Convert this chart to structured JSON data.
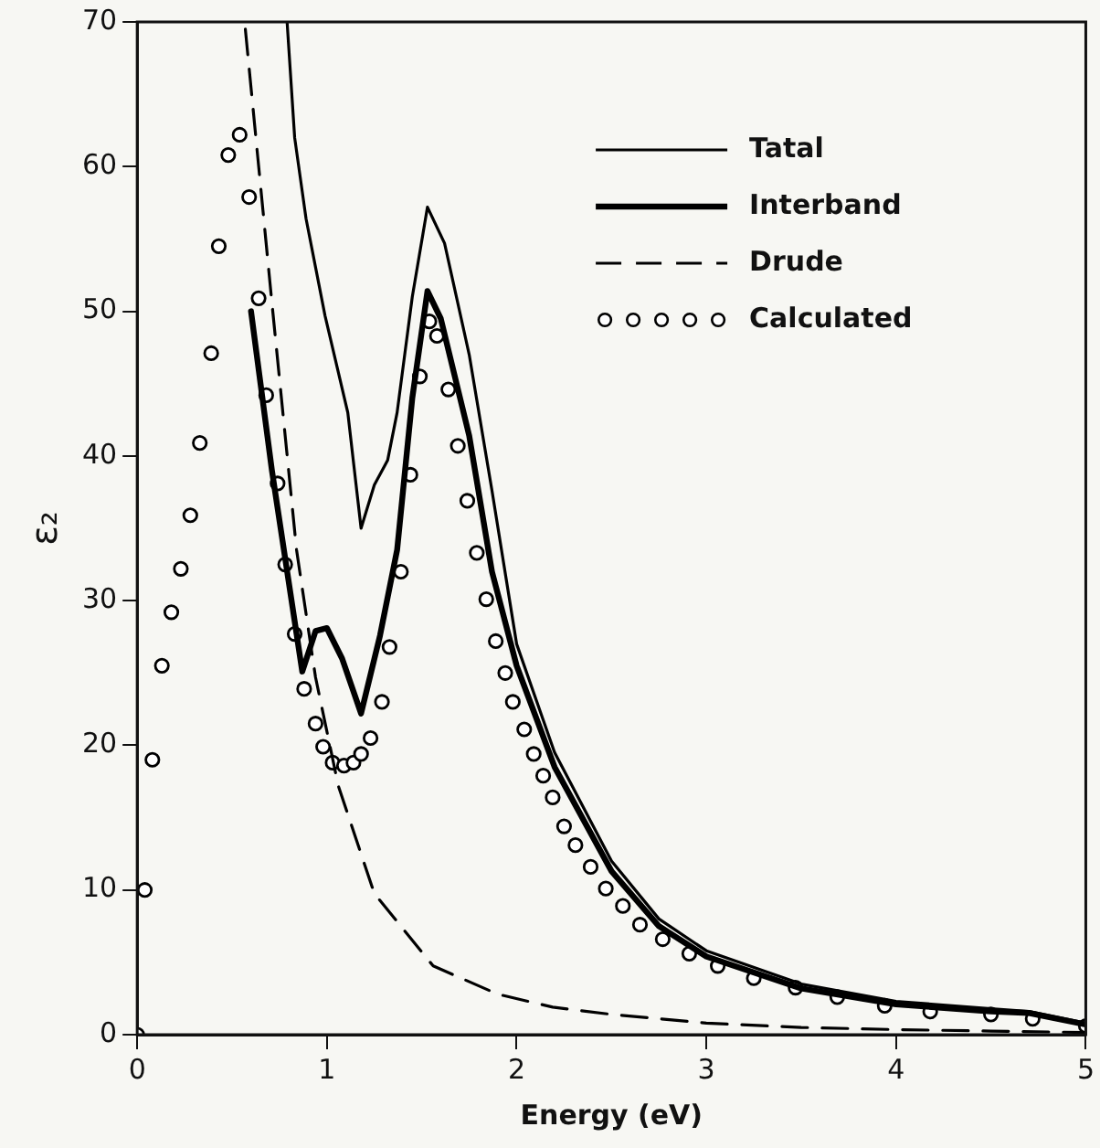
{
  "chart_data": {
    "type": "line",
    "xlabel": "Energy (eV)",
    "ylabel": "ε₂",
    "xlim": [
      0,
      5
    ],
    "ylim": [
      0,
      70
    ],
    "xticks": [
      0,
      1,
      2,
      3,
      4,
      5
    ],
    "yticks": [
      0,
      10,
      20,
      30,
      40,
      50,
      60,
      70
    ],
    "grid": false,
    "legend": "top right",
    "series": [
      {
        "name": "Tatal",
        "color": "#000000",
        "line_style": "solid",
        "marker": "none",
        "x": [
          0.79,
          0.83,
          0.89,
          0.99,
          1.11,
          1.18,
          1.25,
          1.32,
          1.37,
          1.45,
          1.53,
          1.62,
          1.75,
          1.87,
          2.0,
          2.2,
          2.5,
          2.75,
          3.0,
          3.5,
          4.0,
          4.5,
          4.7,
          5.0
        ],
        "values": [
          70,
          62,
          56.4,
          49.7,
          43,
          35,
          38,
          39.7,
          43,
          51,
          57.2,
          54.7,
          47,
          37.6,
          27,
          19.5,
          12,
          8,
          5.8,
          3.5,
          2.3,
          1.8,
          1.6,
          0.8
        ]
      },
      {
        "name": "Interband",
        "color": "#000000",
        "line_style": "solid",
        "marker": "none",
        "x": [
          0.6,
          0.71,
          0.87,
          0.94,
          1.0,
          1.08,
          1.18,
          1.28,
          1.37,
          1.45,
          1.53,
          1.6,
          1.75,
          1.87,
          2.0,
          2.2,
          2.5,
          2.75,
          3.0,
          3.5,
          4.0,
          4.5,
          4.7,
          5.0
        ],
        "values": [
          50,
          39,
          25.1,
          27.9,
          28.1,
          26,
          22.2,
          27.6,
          33.5,
          44,
          51.4,
          49.5,
          41.4,
          32,
          25.5,
          18.5,
          11.3,
          7.5,
          5.4,
          3.2,
          2.1,
          1.6,
          1.5,
          0.7
        ]
      },
      {
        "name": "Drude",
        "color": "#000000",
        "line_style": "dashed",
        "marker": "none",
        "x": [
          0.57,
          0.71,
          0.84,
          0.94,
          1.06,
          1.25,
          1.56,
          1.9,
          2.19,
          2.5,
          3.0,
          3.5,
          4.0,
          4.5,
          5.0
        ],
        "values": [
          69.5,
          50.6,
          33.5,
          24.7,
          17.2,
          9.75,
          4.75,
          2.8,
          1.9,
          1.4,
          0.8,
          0.5,
          0.35,
          0.25,
          0.15
        ]
      },
      {
        "name": "Calculated",
        "type": "scatter",
        "color": "#000000",
        "marker": "circle",
        "x": [
          0,
          0.04,
          0.08,
          0.13,
          0.18,
          0.23,
          0.28,
          0.33,
          0.39,
          0.43,
          0.48,
          0.54,
          0.59,
          0.64,
          0.68,
          0.74,
          0.78,
          0.83,
          0.88,
          0.94,
          0.98,
          1.03,
          1.09,
          1.14,
          1.18,
          1.23,
          1.29,
          1.33,
          1.39,
          1.44,
          1.49,
          1.54,
          1.58,
          1.64,
          1.69,
          1.74,
          1.79,
          1.84,
          1.89,
          1.94,
          1.98,
          2.04,
          2.09,
          2.14,
          2.19,
          2.25,
          2.31,
          2.39,
          2.47,
          2.56,
          2.65,
          2.77,
          2.91,
          3.06,
          3.25,
          3.47,
          3.69,
          3.94,
          4.18,
          4.5,
          4.72,
          5.0
        ],
        "values": [
          0,
          10,
          19,
          25.5,
          29.2,
          32.2,
          35.9,
          40.9,
          47.1,
          54.5,
          60.8,
          62.2,
          57.9,
          50.9,
          44.2,
          38.1,
          32.5,
          27.7,
          23.9,
          21.5,
          19.9,
          18.8,
          18.6,
          18.8,
          19.4,
          20.5,
          23,
          26.8,
          32,
          38.7,
          45.5,
          49.3,
          48.3,
          44.6,
          40.7,
          36.9,
          33.3,
          30.1,
          27.2,
          25,
          23,
          21.1,
          19.4,
          17.9,
          16.4,
          14.4,
          13.1,
          11.6,
          10.1,
          8.9,
          7.6,
          6.6,
          5.6,
          4.75,
          3.9,
          3.25,
          2.6,
          2,
          1.6,
          1.4,
          1.1,
          0.6
        ]
      }
    ]
  }
}
